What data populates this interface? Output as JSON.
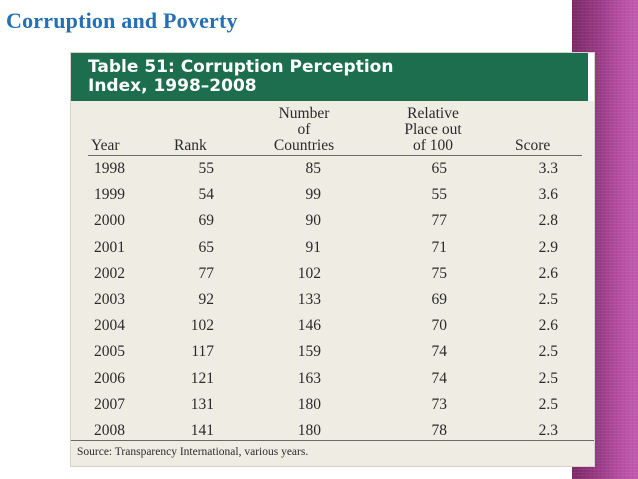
{
  "slide": {
    "title": "Corruption and Poverty"
  },
  "table": {
    "caption_line1": "Table 51:  Corruption Perception",
    "caption_line2": "Index, 1998–2008",
    "headers": {
      "year": "Year",
      "rank": "Rank",
      "number_l1": "Number",
      "number_l2": "of",
      "number_l3": "Countries",
      "relative_l1": "Relative",
      "relative_l2": "Place out",
      "relative_l3": "of 100",
      "score": "Score"
    },
    "rows": [
      {
        "year": "1998",
        "rank": "55",
        "countries": "85",
        "relative": "65",
        "score": "3.3"
      },
      {
        "year": "1999",
        "rank": "54",
        "countries": "99",
        "relative": "55",
        "score": "3.6"
      },
      {
        "year": "2000",
        "rank": "69",
        "countries": "90",
        "relative": "77",
        "score": "2.8"
      },
      {
        "year": "2001",
        "rank": "65",
        "countries": "91",
        "relative": "71",
        "score": "2.9"
      },
      {
        "year": "2002",
        "rank": "77",
        "countries": "102",
        "relative": "75",
        "score": "2.6"
      },
      {
        "year": "2003",
        "rank": "92",
        "countries": "133",
        "relative": "69",
        "score": "2.5"
      },
      {
        "year": "2004",
        "rank": "102",
        "countries": "146",
        "relative": "70",
        "score": "2.6"
      },
      {
        "year": "2005",
        "rank": "117",
        "countries": "159",
        "relative": "74",
        "score": "2.5"
      },
      {
        "year": "2006",
        "rank": "121",
        "countries": "163",
        "relative": "74",
        "score": "2.5"
      },
      {
        "year": "2007",
        "rank": "131",
        "countries": "180",
        "relative": "73",
        "score": "2.5"
      },
      {
        "year": "2008",
        "rank": "141",
        "countries": "180",
        "relative": "78",
        "score": "2.3"
      }
    ],
    "source": "Source: Transparency International, various years."
  },
  "colors": {
    "title": "#2570b5",
    "table_header_bg": "#1c6e4f",
    "table_bg": "#eeece3",
    "band": "#9a3a86"
  }
}
